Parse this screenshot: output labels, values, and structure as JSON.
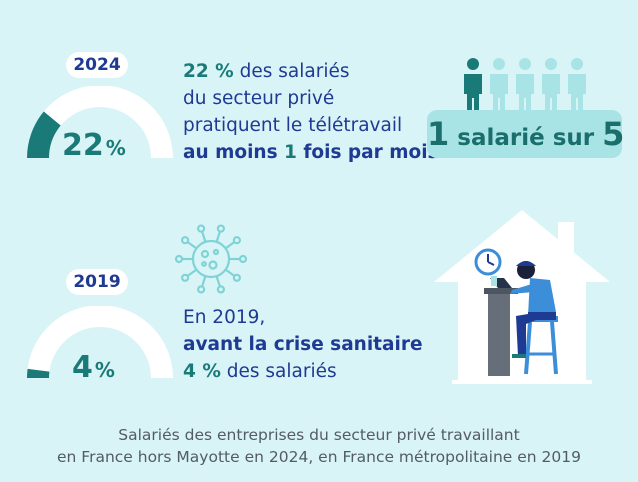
{
  "colors": {
    "background": "#d8f4f7",
    "navy": "#1f3a93",
    "teal": "#1a7a78",
    "light_teal": "#a8e3e6",
    "caption": "#555b63"
  },
  "block_2024": {
    "year": "2024",
    "gauge_value": "22",
    "gauge_unit": "%",
    "gauge_fraction": 0.22,
    "line1_value": "22 %",
    "line1_rest": " des salariés",
    "line2": "du secteur privé",
    "line3": "pratiquent le télétravail",
    "line4_a": "au moins ",
    "line4_num": "1",
    "line4_b": " fois par mois",
    "ratio_prefix": "1",
    "ratio_middle": " salarié sur ",
    "ratio_suffix": "5",
    "people_total": 5,
    "people_highlighted": 1,
    "people_icon": "person-icon"
  },
  "block_2019": {
    "year": "2019",
    "gauge_value": "4",
    "gauge_unit": "%",
    "gauge_fraction": 0.04,
    "line1": "En 2019,",
    "line2": "avant la crise sanitaire",
    "line3_value": "4 %",
    "line3_rest": " des salariés",
    "virus_icon": "virus-icon",
    "illustration": "person-working-at-home-illustration"
  },
  "caption": {
    "line1": "Salariés des entreprises du secteur privé travaillant",
    "line2": "en France hors Mayotte en 2024, en France métropolitaine en 2019"
  }
}
